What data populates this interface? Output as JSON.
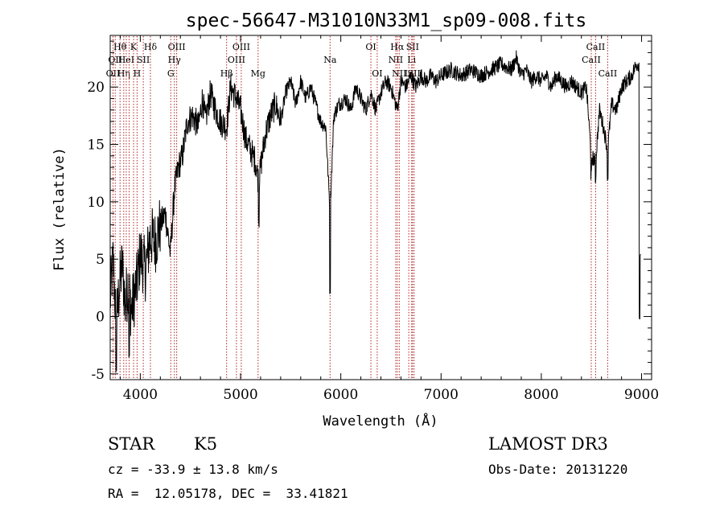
{
  "chart_data": {
    "type": "line",
    "title": "spec-56647-M31010N33M1_sp09-008.fits",
    "xlabel": "Wavelength (Å)",
    "ylabel": "Flux (relative)",
    "xlim": [
      3700,
      9100
    ],
    "ylim": [
      -5.5,
      24.5
    ],
    "xticks": [
      4000,
      5000,
      6000,
      7000,
      8000,
      9000
    ],
    "yticks": [
      -5,
      0,
      5,
      10,
      15,
      20
    ],
    "grid": false,
    "legend": "none",
    "line_color": "#000000",
    "marker_color": "#b22222",
    "spectrum_anchors": [
      [
        3700,
        1.5
      ],
      [
        3730,
        5.0
      ],
      [
        3760,
        -1.0
      ],
      [
        3790,
        2.5
      ],
      [
        3820,
        4.5
      ],
      [
        3850,
        1.0
      ],
      [
        3880,
        3.0
      ],
      [
        3910,
        0.5
      ],
      [
        3933,
        1.5
      ],
      [
        3968,
        3.0
      ],
      [
        4000,
        5.5
      ],
      [
        4050,
        4.0
      ],
      [
        4100,
        7.0
      ],
      [
        4150,
        6.5
      ],
      [
        4200,
        8.0
      ],
      [
        4250,
        9.0
      ],
      [
        4300,
        5.5
      ],
      [
        4340,
        11.0
      ],
      [
        4380,
        13.0
      ],
      [
        4420,
        14.0
      ],
      [
        4470,
        17.0
      ],
      [
        4520,
        17.5
      ],
      [
        4580,
        16.5
      ],
      [
        4620,
        19.0
      ],
      [
        4650,
        17.0
      ],
      [
        4700,
        19.5
      ],
      [
        4750,
        18.0
      ],
      [
        4800,
        17.0
      ],
      [
        4861,
        16.5
      ],
      [
        4900,
        20.0
      ],
      [
        4959,
        19.0
      ],
      [
        5000,
        18.0
      ],
      [
        5050,
        15.5
      ],
      [
        5100,
        14.5
      ],
      [
        5150,
        13.5
      ],
      [
        5183,
        11.5
      ],
      [
        5200,
        13.0
      ],
      [
        5250,
        16.0
      ],
      [
        5300,
        17.5
      ],
      [
        5350,
        18.5
      ],
      [
        5400,
        17.0
      ],
      [
        5450,
        19.5
      ],
      [
        5500,
        20.5
      ],
      [
        5550,
        18.5
      ],
      [
        5600,
        20.5
      ],
      [
        5650,
        19.0
      ],
      [
        5700,
        20.0
      ],
      [
        5750,
        18.5
      ],
      [
        5800,
        17.0
      ],
      [
        5850,
        16.5
      ],
      [
        5893,
        9.0
      ],
      [
        5930,
        17.5
      ],
      [
        5980,
        18.5
      ],
      [
        6050,
        19.0
      ],
      [
        6100,
        18.0
      ],
      [
        6150,
        20.0
      ],
      [
        6200,
        19.0
      ],
      [
        6250,
        18.0
      ],
      [
        6300,
        19.5
      ],
      [
        6350,
        18.0
      ],
      [
        6400,
        19.5
      ],
      [
        6450,
        20.5
      ],
      [
        6500,
        20.0
      ],
      [
        6563,
        18.0
      ],
      [
        6600,
        20.5
      ],
      [
        6650,
        20.0
      ],
      [
        6700,
        21.0
      ],
      [
        6750,
        20.0
      ],
      [
        6800,
        21.0
      ],
      [
        6850,
        20.5
      ],
      [
        6900,
        21.0
      ],
      [
        6950,
        20.5
      ],
      [
        7000,
        21.0
      ],
      [
        7100,
        21.5
      ],
      [
        7200,
        21.0
      ],
      [
        7300,
        21.5
      ],
      [
        7400,
        21.0
      ],
      [
        7500,
        21.5
      ],
      [
        7600,
        22.0
      ],
      [
        7700,
        21.5
      ],
      [
        7750,
        22.5
      ],
      [
        7800,
        21.0
      ],
      [
        7850,
        21.5
      ],
      [
        7900,
        20.5
      ],
      [
        7950,
        21.0
      ],
      [
        8000,
        20.5
      ],
      [
        8050,
        21.0
      ],
      [
        8100,
        20.0
      ],
      [
        8150,
        21.0
      ],
      [
        8200,
        20.5
      ],
      [
        8250,
        20.0
      ],
      [
        8300,
        20.5
      ],
      [
        8350,
        20.0
      ],
      [
        8400,
        19.5
      ],
      [
        8450,
        20.0
      ],
      [
        8498,
        14.0
      ],
      [
        8542,
        13.5
      ],
      [
        8580,
        18.0
      ],
      [
        8620,
        16.5
      ],
      [
        8662,
        14.5
      ],
      [
        8700,
        18.5
      ],
      [
        8750,
        18.0
      ],
      [
        8800,
        20.0
      ],
      [
        8850,
        20.5
      ],
      [
        8900,
        21.0
      ],
      [
        8950,
        22.0
      ],
      [
        8990,
        22.0
      ]
    ],
    "sharp_features": [
      [
        5893,
        2.5
      ],
      [
        5183,
        8.2
      ],
      [
        3890,
        -3.5
      ],
      [
        8498,
        12.3
      ],
      [
        8542,
        12.0
      ],
      [
        8662,
        12.3
      ],
      [
        8980,
        0.0
      ],
      [
        8990,
        5.0
      ],
      [
        3760,
        -4.5
      ]
    ],
    "line_markers": [
      {
        "x": 3728,
        "label": "OII",
        "row": 3,
        "pos": "center"
      },
      {
        "x": 3750,
        "label": "OII",
        "row": 2,
        "pos": "center"
      },
      {
        "x": 3798,
        "label": "Hθ",
        "row": 1,
        "pos": "center"
      },
      {
        "x": 3835,
        "label": "Hη",
        "row": 3,
        "pos": "center"
      },
      {
        "x": 3860,
        "label": "HeI",
        "row": 2,
        "pos": "center"
      },
      {
        "x": 3889,
        "label": "",
        "row": 0,
        "pos": "center"
      },
      {
        "x": 3933,
        "label": "K",
        "row": 1,
        "pos": "center"
      },
      {
        "x": 3968,
        "label": "H",
        "row": 3,
        "pos": "center"
      },
      {
        "x": 4030,
        "label": "SII",
        "row": 2,
        "pos": "center"
      },
      {
        "x": 4101,
        "label": "Hδ",
        "row": 1,
        "pos": "center"
      },
      {
        "x": 4304,
        "label": "G",
        "row": 3,
        "pos": "center"
      },
      {
        "x": 4340,
        "label": "Hγ",
        "row": 2,
        "pos": "center"
      },
      {
        "x": 4363,
        "label": "OIII",
        "row": 1,
        "pos": "center"
      },
      {
        "x": 4861,
        "label": "Hβ",
        "row": 3,
        "pos": "center"
      },
      {
        "x": 4959,
        "label": "OIII",
        "row": 2,
        "pos": "center"
      },
      {
        "x": 5007,
        "label": "OIII",
        "row": 1,
        "pos": "center"
      },
      {
        "x": 5175,
        "label": "Mg",
        "row": 3,
        "pos": "center"
      },
      {
        "x": 5893,
        "label": "Na",
        "row": 2,
        "pos": "center"
      },
      {
        "x": 6300,
        "label": "OI",
        "row": 1,
        "pos": "center"
      },
      {
        "x": 6363,
        "label": "OI",
        "row": 3,
        "pos": "center"
      },
      {
        "x": 6548,
        "label": "NII",
        "row": 2,
        "pos": "center"
      },
      {
        "x": 6563,
        "label": "Hα",
        "row": 1,
        "pos": "center"
      },
      {
        "x": 6583,
        "label": "NII",
        "row": 3,
        "pos": "center"
      },
      {
        "x": 6678,
        "label": "Li",
        "row": 3,
        "pos": "center"
      },
      {
        "x": 6707,
        "label": "Li",
        "row": 2,
        "pos": "center"
      },
      {
        "x": 6716,
        "label": "SII",
        "row": 1,
        "pos": "center"
      },
      {
        "x": 6731,
        "label": "SII",
        "row": 3,
        "pos": "center"
      },
      {
        "x": 8498,
        "label": "CaII",
        "row": 2,
        "pos": "center"
      },
      {
        "x": 8542,
        "label": "CaII",
        "row": 1,
        "pos": "center"
      },
      {
        "x": 8662,
        "label": "CaII",
        "row": 3,
        "pos": "center"
      }
    ]
  },
  "info": {
    "class": "STAR",
    "subclass": "K5",
    "survey": "LAMOST DR3",
    "cz": "cz = -33.9 ± 13.8 km/s",
    "obs_date": "Obs-Date: 20131220",
    "coords": "RA =  12.05178, DEC =  33.41821"
  }
}
